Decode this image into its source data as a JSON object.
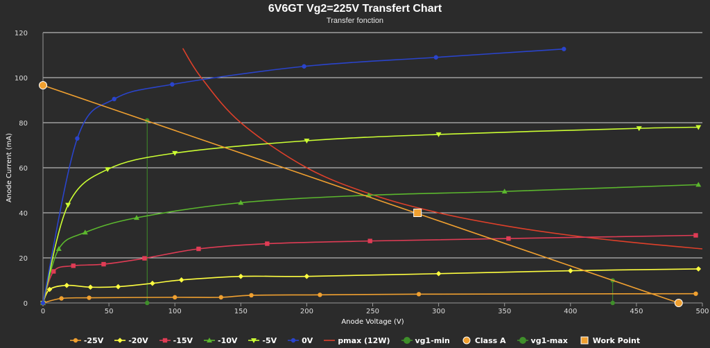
{
  "chart_data": {
    "type": "line",
    "title": "6V6GT Vg2=225V Transfert Chart",
    "subtitle": "Transfer fonction",
    "xlabel": "Anode Voltage (V)",
    "ylabel": "Anode Current (mA)",
    "xlim": [
      0,
      500
    ],
    "ylim": [
      0,
      120
    ],
    "x_ticks": [
      0,
      50,
      100,
      150,
      200,
      250,
      300,
      350,
      400,
      450,
      500
    ],
    "y_ticks": [
      0,
      20,
      40,
      60,
      80,
      100,
      120
    ],
    "grid": true,
    "legend_position": "bottom",
    "series": [
      {
        "name": "-25V",
        "color": "#f0a030",
        "marker": "circle",
        "style": "curve",
        "points": [
          [
            0,
            0
          ],
          [
            14,
            2
          ],
          [
            35,
            2.3
          ],
          [
            100,
            2.5
          ],
          [
            135,
            2.5
          ],
          [
            158,
            3.4
          ],
          [
            210,
            3.6
          ],
          [
            285,
            3.9
          ],
          [
            495,
            4.1
          ]
        ]
      },
      {
        "name": "-20V",
        "color": "#ffff40",
        "marker": "diamond",
        "style": "curve",
        "points": [
          [
            0,
            0
          ],
          [
            5,
            6
          ],
          [
            18,
            7.8
          ],
          [
            36,
            7
          ],
          [
            57,
            7.2
          ],
          [
            83,
            8.7
          ],
          [
            105,
            10.2
          ],
          [
            150,
            11.8
          ],
          [
            200,
            11.8
          ],
          [
            300,
            13
          ],
          [
            400,
            14.3
          ],
          [
            497,
            15.1
          ]
        ]
      },
      {
        "name": "-15V",
        "color": "#e03c55",
        "marker": "square",
        "style": "curve",
        "points": [
          [
            0,
            0
          ],
          [
            8,
            14
          ],
          [
            23,
            16.5
          ],
          [
            46,
            17.2
          ],
          [
            77,
            19.8
          ],
          [
            118,
            24
          ],
          [
            170,
            26.3
          ],
          [
            248,
            27.5
          ],
          [
            353,
            28.6
          ],
          [
            495,
            30
          ]
        ]
      },
      {
        "name": "-10V",
        "color": "#5cb82e",
        "marker": "triangle",
        "style": "curve",
        "points": [
          [
            0,
            0
          ],
          [
            12,
            24
          ],
          [
            32,
            31.3
          ],
          [
            71,
            37.8
          ],
          [
            150,
            44.5
          ],
          [
            247,
            47.8
          ],
          [
            350,
            49.5
          ],
          [
            497,
            52.5
          ]
        ]
      },
      {
        "name": "-5V",
        "color": "#ccff33",
        "marker": "triangle-down",
        "style": "curve",
        "points": [
          [
            0,
            0
          ],
          [
            19,
            43.5
          ],
          [
            49,
            59.3
          ],
          [
            100,
            66.5
          ],
          [
            200,
            72
          ],
          [
            300,
            74.8
          ],
          [
            452,
            77.5
          ],
          [
            497,
            78
          ]
        ]
      },
      {
        "name": "0V",
        "color": "#2a44cc",
        "marker": "circle",
        "style": "curve",
        "points": [
          [
            0,
            0
          ],
          [
            26,
            73
          ],
          [
            54,
            90.5
          ],
          [
            98,
            97
          ],
          [
            198,
            105
          ],
          [
            298,
            109
          ],
          [
            395,
            112.7
          ]
        ]
      },
      {
        "name": "pmax (12W)",
        "color": "#e0402a",
        "marker": "none",
        "style": "curve",
        "points": [
          [
            106,
            113
          ],
          [
            120,
            100
          ],
          [
            150,
            80
          ],
          [
            200,
            60
          ],
          [
            250,
            48
          ],
          [
            300,
            40
          ],
          [
            350,
            34.3
          ],
          [
            400,
            30
          ],
          [
            450,
            26.7
          ],
          [
            500,
            24
          ]
        ]
      },
      {
        "name": "vg1-min",
        "color": "#3f8f2a",
        "marker": "circle",
        "style": "straight",
        "points": [
          [
            79,
            81
          ],
          [
            79,
            0
          ]
        ]
      },
      {
        "name": "Class A",
        "color": "#f0a030",
        "marker": "circle-large",
        "style": "straight",
        "points": [
          [
            0,
            96.6
          ],
          [
            482,
            0
          ]
        ]
      },
      {
        "name": "vg1-max",
        "color": "#3f8f2a",
        "marker": "circle",
        "style": "straight",
        "points": [
          [
            432,
            10
          ],
          [
            432,
            0
          ]
        ]
      },
      {
        "name": "Work Point",
        "color": "#f0a030",
        "marker": "square-large",
        "style": "none",
        "points": [
          [
            284,
            40
          ]
        ]
      }
    ]
  }
}
